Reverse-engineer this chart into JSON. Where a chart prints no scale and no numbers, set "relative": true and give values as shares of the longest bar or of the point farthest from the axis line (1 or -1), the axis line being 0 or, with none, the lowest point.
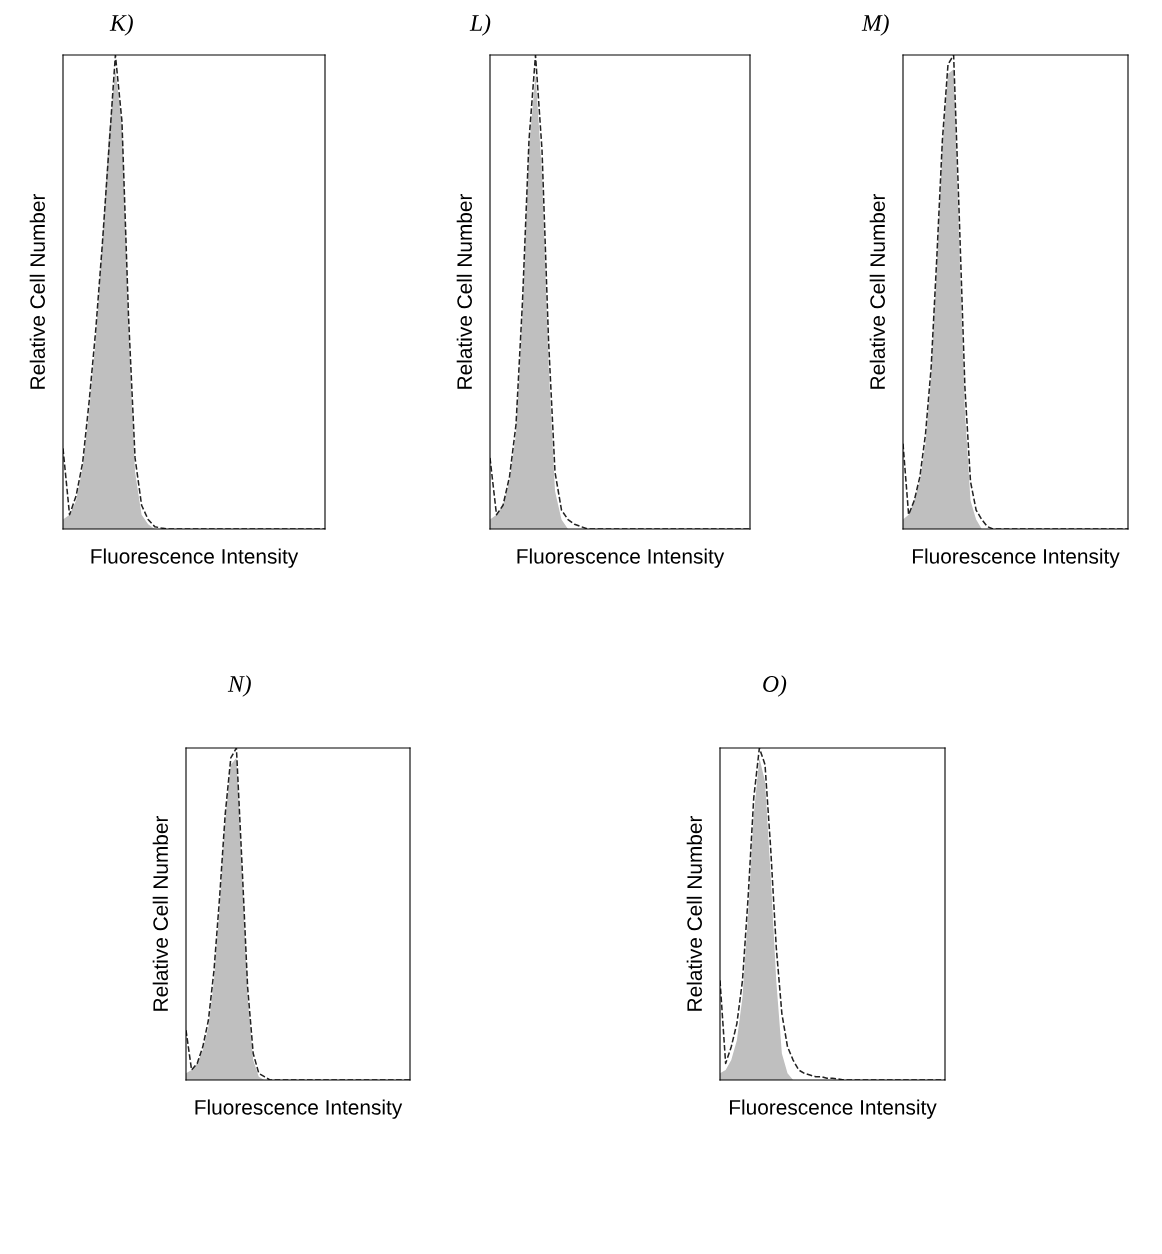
{
  "chart_data": [
    {
      "type": "area",
      "title": "K)",
      "xlabel": "Fluorescence Intensity",
      "ylabel": "Relative Cell Number",
      "relative": true,
      "categories": [
        null,
        null,
        null,
        null,
        null,
        null,
        null,
        null,
        null,
        null,
        null,
        null,
        null,
        null,
        null,
        null,
        null,
        null,
        null,
        null,
        null,
        null,
        null,
        null,
        null,
        null,
        null,
        null,
        null,
        null,
        null,
        null,
        null,
        null,
        null,
        null,
        null,
        null,
        null,
        null,
        null
      ],
      "series": [
        {
          "color": "#bfbfbf",
          "values": [
            0.02,
            0.03,
            0.06,
            0.13,
            0.25,
            0.4,
            0.6,
            0.83,
            0.97,
            0.85,
            0.42,
            0.12,
            0.03,
            0.01,
            0,
            0,
            0,
            0,
            0,
            0,
            0,
            0,
            0,
            0,
            0,
            0,
            0,
            0,
            0,
            0,
            0,
            0,
            0,
            0,
            0,
            0,
            0,
            0,
            0,
            0,
            0
          ]
        },
        {
          "type": "line",
          "color": "#222222",
          "line_style": "dashed",
          "values": [
            0.17,
            0.03,
            0.07,
            0.14,
            0.27,
            0.42,
            0.6,
            0.8,
            1.0,
            0.86,
            0.45,
            0.15,
            0.05,
            0.02,
            0.005,
            0.002,
            0,
            0,
            0,
            0,
            0,
            0,
            0,
            0,
            0,
            0,
            0,
            0,
            0,
            0,
            0,
            0,
            0,
            0,
            0,
            0,
            0,
            0,
            0,
            0,
            0
          ]
        }
      ]
    },
    {
      "type": "area",
      "title": "L)",
      "xlabel": "Fluorescence Intensity",
      "ylabel": "Relative Cell Number",
      "relative": true,
      "categories": [
        null,
        null,
        null,
        null,
        null,
        null,
        null,
        null,
        null,
        null,
        null,
        null,
        null,
        null,
        null,
        null,
        null,
        null,
        null,
        null,
        null,
        null,
        null,
        null,
        null,
        null,
        null,
        null,
        null,
        null,
        null,
        null,
        null,
        null,
        null,
        null,
        null,
        null,
        null,
        null,
        null
      ],
      "series": [
        {
          "color": "#bfbfbf",
          "values": [
            0.02,
            0.03,
            0.05,
            0.1,
            0.2,
            0.45,
            0.8,
            0.96,
            0.75,
            0.35,
            0.08,
            0.02,
            0,
            0,
            0,
            0,
            0,
            0,
            0,
            0,
            0,
            0,
            0,
            0,
            0,
            0,
            0,
            0,
            0,
            0,
            0,
            0,
            0,
            0,
            0,
            0,
            0,
            0,
            0,
            0,
            0
          ]
        },
        {
          "type": "line",
          "color": "#222222",
          "line_style": "dashed",
          "values": [
            0.15,
            0.03,
            0.05,
            0.11,
            0.22,
            0.48,
            0.82,
            1.0,
            0.8,
            0.4,
            0.12,
            0.04,
            0.02,
            0.01,
            0.005,
            0,
            0,
            0,
            0,
            0,
            0,
            0,
            0,
            0,
            0,
            0,
            0,
            0,
            0,
            0,
            0,
            0,
            0,
            0,
            0,
            0,
            0,
            0,
            0,
            0,
            0
          ]
        }
      ]
    },
    {
      "type": "area",
      "title": "M)",
      "xlabel": "Fluorescence Intensity",
      "ylabel": "Relative Cell Number",
      "relative": true,
      "categories": [
        null,
        null,
        null,
        null,
        null,
        null,
        null,
        null,
        null,
        null,
        null,
        null,
        null,
        null,
        null,
        null,
        null,
        null,
        null,
        null,
        null,
        null,
        null,
        null,
        null,
        null,
        null,
        null,
        null,
        null,
        null,
        null,
        null,
        null,
        null,
        null,
        null,
        null,
        null,
        null,
        null
      ],
      "series": [
        {
          "color": "#bfbfbf",
          "values": [
            0.02,
            0.03,
            0.06,
            0.1,
            0.18,
            0.32,
            0.55,
            0.8,
            0.96,
            0.97,
            0.6,
            0.25,
            0.06,
            0.02,
            0,
            0,
            0,
            0,
            0,
            0,
            0,
            0,
            0,
            0,
            0,
            0,
            0,
            0,
            0,
            0,
            0,
            0,
            0,
            0,
            0,
            0,
            0,
            0,
            0,
            0,
            0
          ]
        },
        {
          "type": "line",
          "color": "#222222",
          "line_style": "dashed",
          "values": [
            0.18,
            0.03,
            0.06,
            0.11,
            0.2,
            0.34,
            0.57,
            0.82,
            0.98,
            1.0,
            0.66,
            0.3,
            0.1,
            0.04,
            0.02,
            0.005,
            0,
            0,
            0,
            0,
            0,
            0,
            0,
            0,
            0,
            0,
            0,
            0,
            0,
            0,
            0,
            0,
            0,
            0,
            0,
            0,
            0,
            0,
            0,
            0,
            0
          ]
        }
      ]
    },
    {
      "type": "area",
      "title": "N)",
      "xlabel": "Fluorescence Intensity",
      "ylabel": "Relative Cell Number",
      "relative": true,
      "categories": [
        null,
        null,
        null,
        null,
        null,
        null,
        null,
        null,
        null,
        null,
        null,
        null,
        null,
        null,
        null,
        null,
        null,
        null,
        null,
        null,
        null,
        null,
        null,
        null,
        null,
        null,
        null,
        null,
        null,
        null,
        null,
        null,
        null,
        null,
        null,
        null,
        null,
        null,
        null,
        null,
        null
      ],
      "series": [
        {
          "color": "#bfbfbf",
          "values": [
            0.02,
            0.03,
            0.05,
            0.09,
            0.16,
            0.3,
            0.52,
            0.78,
            0.95,
            0.97,
            0.62,
            0.25,
            0.06,
            0.01,
            0,
            0,
            0,
            0,
            0,
            0,
            0,
            0,
            0,
            0,
            0,
            0,
            0,
            0,
            0,
            0,
            0,
            0,
            0,
            0,
            0,
            0,
            0,
            0,
            0,
            0,
            0
          ]
        },
        {
          "type": "line",
          "color": "#222222",
          "line_style": "dashed",
          "values": [
            0.15,
            0.03,
            0.05,
            0.1,
            0.18,
            0.33,
            0.55,
            0.8,
            0.97,
            1.0,
            0.65,
            0.28,
            0.08,
            0.02,
            0.01,
            0,
            0,
            0,
            0,
            0,
            0,
            0,
            0,
            0,
            0,
            0,
            0,
            0,
            0,
            0,
            0,
            0,
            0,
            0,
            0,
            0,
            0,
            0,
            0,
            0,
            0
          ]
        }
      ]
    },
    {
      "type": "area",
      "title": "O)",
      "xlabel": "Fluorescence Intensity",
      "ylabel": "Relative Cell Number",
      "relative": true,
      "categories": [
        null,
        null,
        null,
        null,
        null,
        null,
        null,
        null,
        null,
        null,
        null,
        null,
        null,
        null,
        null,
        null,
        null,
        null,
        null,
        null,
        null,
        null,
        null,
        null,
        null,
        null,
        null,
        null,
        null,
        null,
        null,
        null,
        null,
        null,
        null,
        null,
        null,
        null,
        null,
        null,
        null
      ],
      "series": [
        {
          "color": "#bfbfbf",
          "values": [
            0.02,
            0.03,
            0.06,
            0.12,
            0.25,
            0.5,
            0.8,
            0.97,
            0.9,
            0.62,
            0.3,
            0.08,
            0.02,
            0,
            0,
            0,
            0,
            0,
            0,
            0,
            0,
            0,
            0,
            0,
            0,
            0,
            0,
            0,
            0,
            0,
            0,
            0,
            0,
            0,
            0,
            0,
            0,
            0,
            0,
            0,
            0
          ]
        },
        {
          "type": "line",
          "color": "#222222",
          "line_style": "dashed",
          "values": [
            0.3,
            0.05,
            0.1,
            0.17,
            0.3,
            0.55,
            0.85,
            1.0,
            0.95,
            0.7,
            0.4,
            0.2,
            0.1,
            0.06,
            0.03,
            0.02,
            0.015,
            0.01,
            0.01,
            0.005,
            0.005,
            0.003,
            0,
            0,
            0,
            0,
            0,
            0,
            0,
            0,
            0,
            0,
            0,
            0,
            0,
            0,
            0,
            0,
            0,
            0,
            0
          ]
        }
      ]
    }
  ]
}
